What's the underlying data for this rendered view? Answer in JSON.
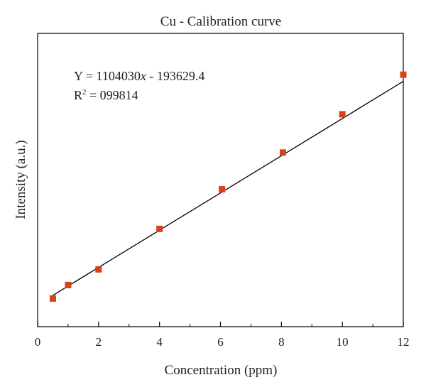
{
  "chart_data": {
    "type": "scatter",
    "title": "Cu - Calibration curve",
    "xlabel": "Concentration (ppm)",
    "ylabel": "Intensity (a.u.)",
    "xlim": [
      0,
      12
    ],
    "x_ticks": [
      "0",
      "2",
      "4",
      "6",
      "8",
      "10",
      "12"
    ],
    "y_ticks_shown": false,
    "grid": false,
    "annotation": {
      "equation_prefix": "Y = 1104030",
      "equation_var": "x",
      "equation_suffix": " - 193629.4",
      "r2_base": "R",
      "r2_exp": "2",
      "r2_value": " = 099814"
    },
    "fit_line": {
      "slope": 1104030,
      "intercept": -193629.4,
      "x_range": [
        0.5,
        12
      ]
    },
    "series": [
      {
        "color": "#d9401f",
        "marker": "square",
        "points": [
          {
            "x": 0.5,
            "y": 170000
          },
          {
            "x": 1,
            "y": 970000
          },
          {
            "x": 2,
            "y": 1900000
          },
          {
            "x": 4,
            "y": 4300000
          },
          {
            "x": 6.05,
            "y": 6650000
          },
          {
            "x": 8.05,
            "y": 8830000
          },
          {
            "x": 10,
            "y": 11100000
          },
          {
            "x": 12,
            "y": 13450000
          }
        ]
      }
    ],
    "line_color": "#000000"
  }
}
